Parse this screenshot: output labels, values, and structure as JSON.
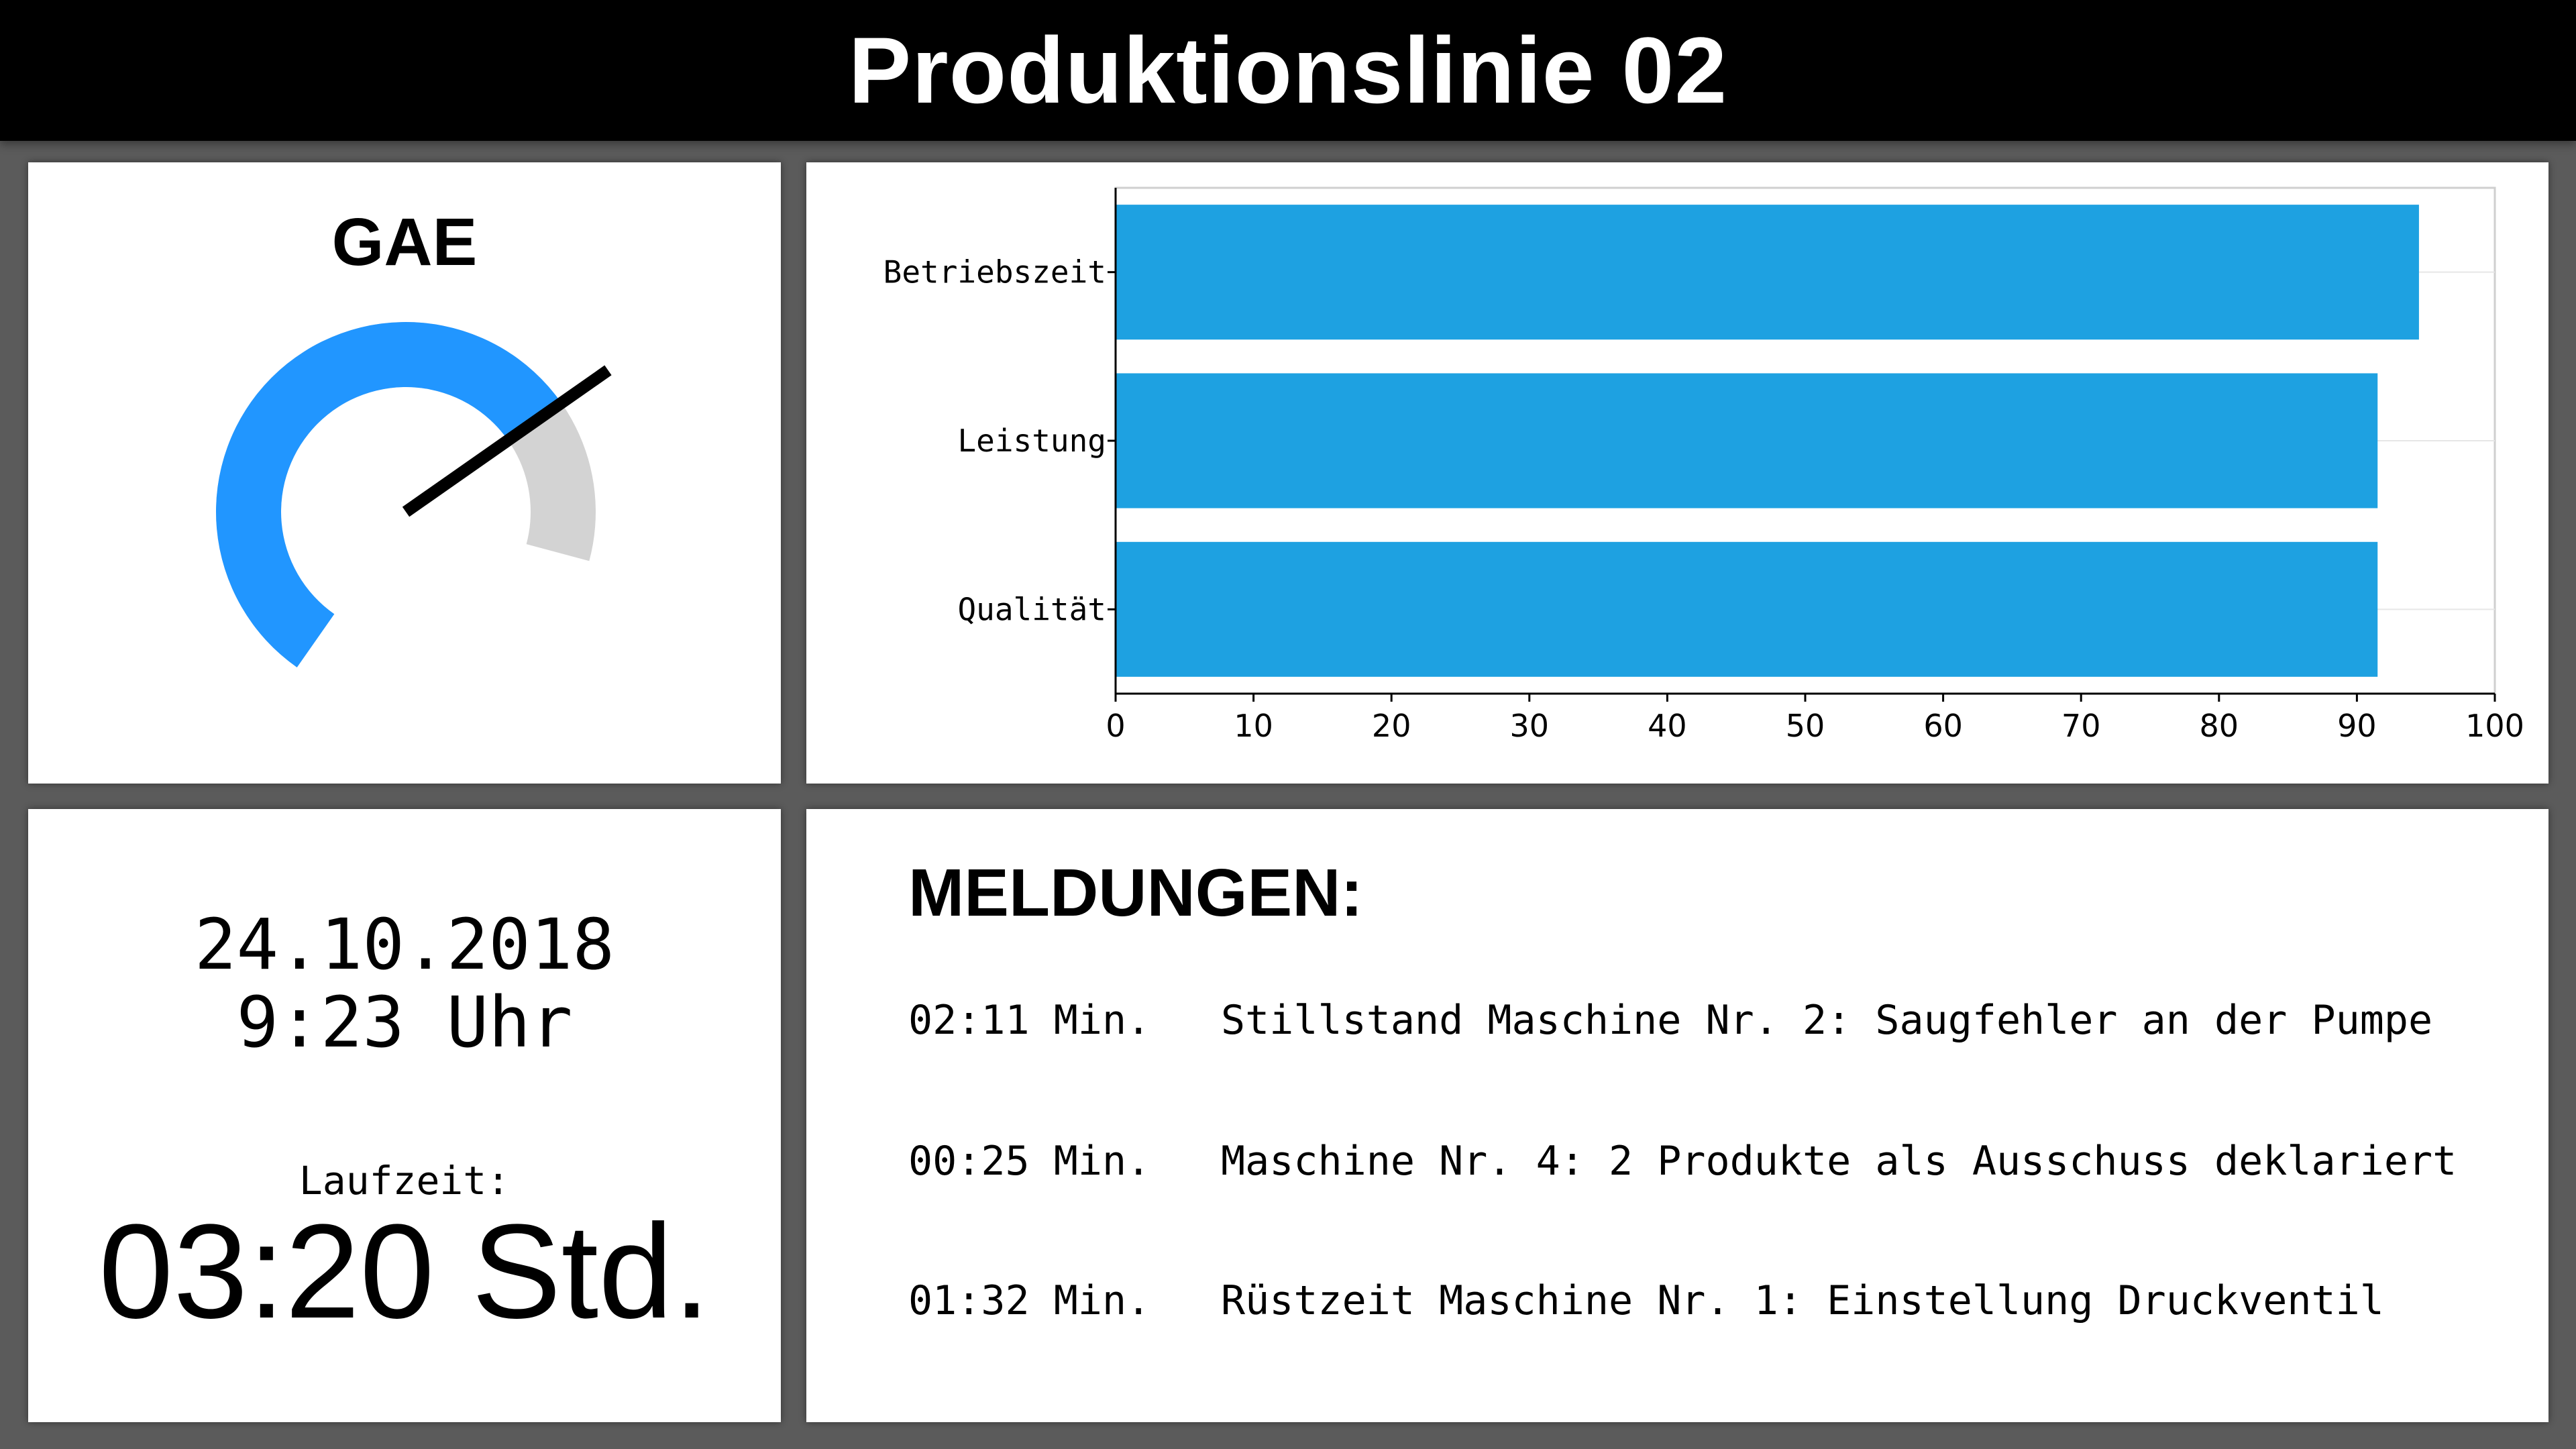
{
  "header": {
    "title": "Produktionslinie 02"
  },
  "gauge": {
    "title": "GAE",
    "value": 80,
    "value_text": "80",
    "unit": "%",
    "min": 0,
    "max": 100,
    "colors": {
      "fill": "#2196ff",
      "track": "#d3d3d3",
      "needle": "#000000"
    }
  },
  "chart_data": {
    "type": "bar",
    "orientation": "horizontal",
    "categories": [
      "Betriebszeit",
      "Leistung",
      "Qualität"
    ],
    "values": [
      94.5,
      91.5,
      91.5
    ],
    "xlim": [
      0,
      100
    ],
    "x_ticks": [
      0,
      10,
      20,
      30,
      40,
      50,
      60,
      70,
      80,
      90,
      100
    ],
    "grid": true,
    "bar_color": "#1ea1e1",
    "title": "",
    "xlabel": "",
    "ylabel": ""
  },
  "clock": {
    "date": "24.10.2018",
    "time": "9:23 Uhr",
    "runtime_label": "Laufzeit:",
    "runtime_value": "03:20 Std."
  },
  "messages": {
    "title": "MELDUNGEN:",
    "items": [
      {
        "time": "02:11 Min.",
        "text": "Stillstand Maschine Nr. 2: Saugfehler an der Pumpe"
      },
      {
        "time": "00:25 Min.",
        "text": "Maschine Nr. 4: 2 Produkte als Ausschuss deklariert"
      },
      {
        "time": "01:32 Min.",
        "text": "Rüstzeit Maschine Nr. 1: Einstellung Druckventil"
      }
    ]
  }
}
